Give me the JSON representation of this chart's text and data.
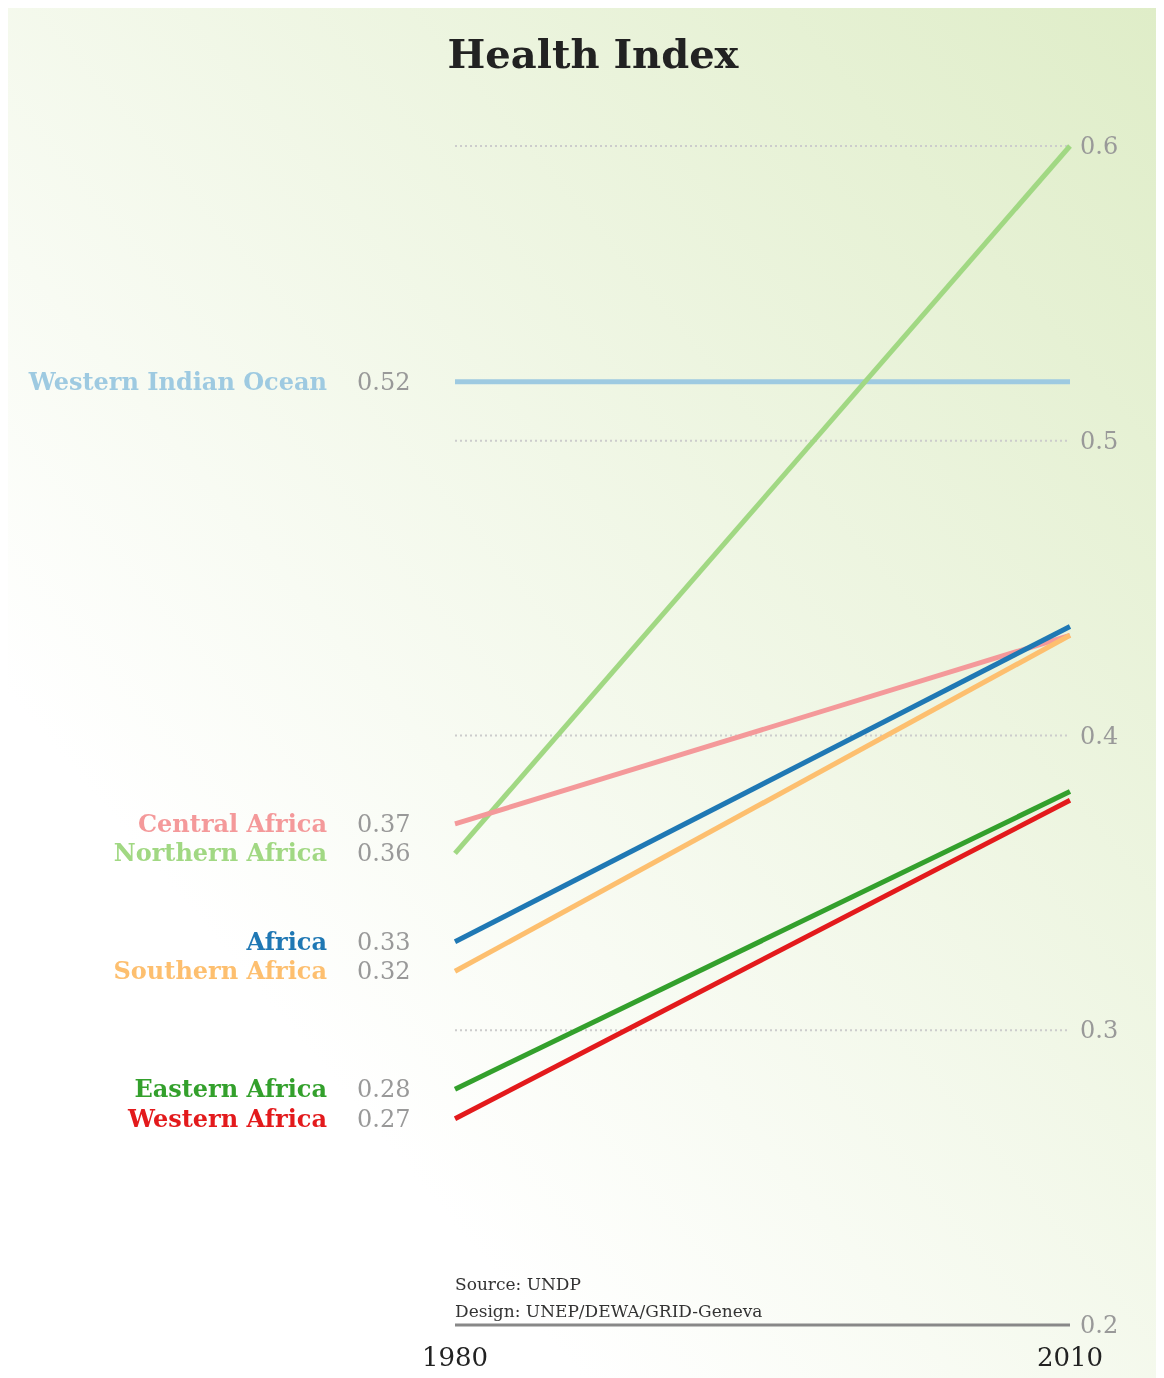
{
  "chart_data": {
    "type": "line",
    "title": "Health Index",
    "x": [
      1980,
      2010
    ],
    "xlim": [
      1980,
      2010
    ],
    "xticks": [
      1980,
      2010
    ],
    "ylim": [
      0.2,
      0.6
    ],
    "yticks": [
      0.2,
      0.3,
      0.4,
      0.5,
      0.6
    ],
    "grid": "y",
    "legend": false,
    "marker": "none",
    "line_style": "solid",
    "series": [
      {
        "name": "Western Indian Ocean",
        "color": "#9ecae1",
        "values": [
          0.52,
          0.52
        ],
        "value_labels": [
          "0.52",
          null
        ]
      },
      {
        "name": "Northern Africa",
        "color": "#a1d883",
        "values": [
          0.36,
          0.6
        ],
        "value_labels": [
          "0.36",
          null
        ]
      },
      {
        "name": "Central Africa",
        "color": "#f4999a",
        "values": [
          0.37,
          0.434
        ],
        "value_labels": [
          "0.37",
          null
        ]
      },
      {
        "name": "Africa",
        "color": "#1f78b4",
        "values": [
          0.33,
          0.437
        ],
        "value_labels": [
          "0.33",
          null
        ]
      },
      {
        "name": "Southern Africa",
        "color": "#fdbf6f",
        "values": [
          0.32,
          0.434
        ],
        "value_labels": [
          "0.32",
          null
        ]
      },
      {
        "name": "Eastern Africa",
        "color": "#33a02c",
        "values": [
          0.28,
          0.381
        ],
        "value_labels": [
          "0.28",
          null
        ]
      },
      {
        "name": "Western Africa",
        "color": "#e31a1c",
        "values": [
          0.27,
          0.378
        ],
        "value_labels": [
          "0.27",
          null
        ]
      }
    ],
    "annotations": [
      "Source: UNDP",
      "Design: UNEP/DEWA/GRID-Geneva"
    ]
  }
}
